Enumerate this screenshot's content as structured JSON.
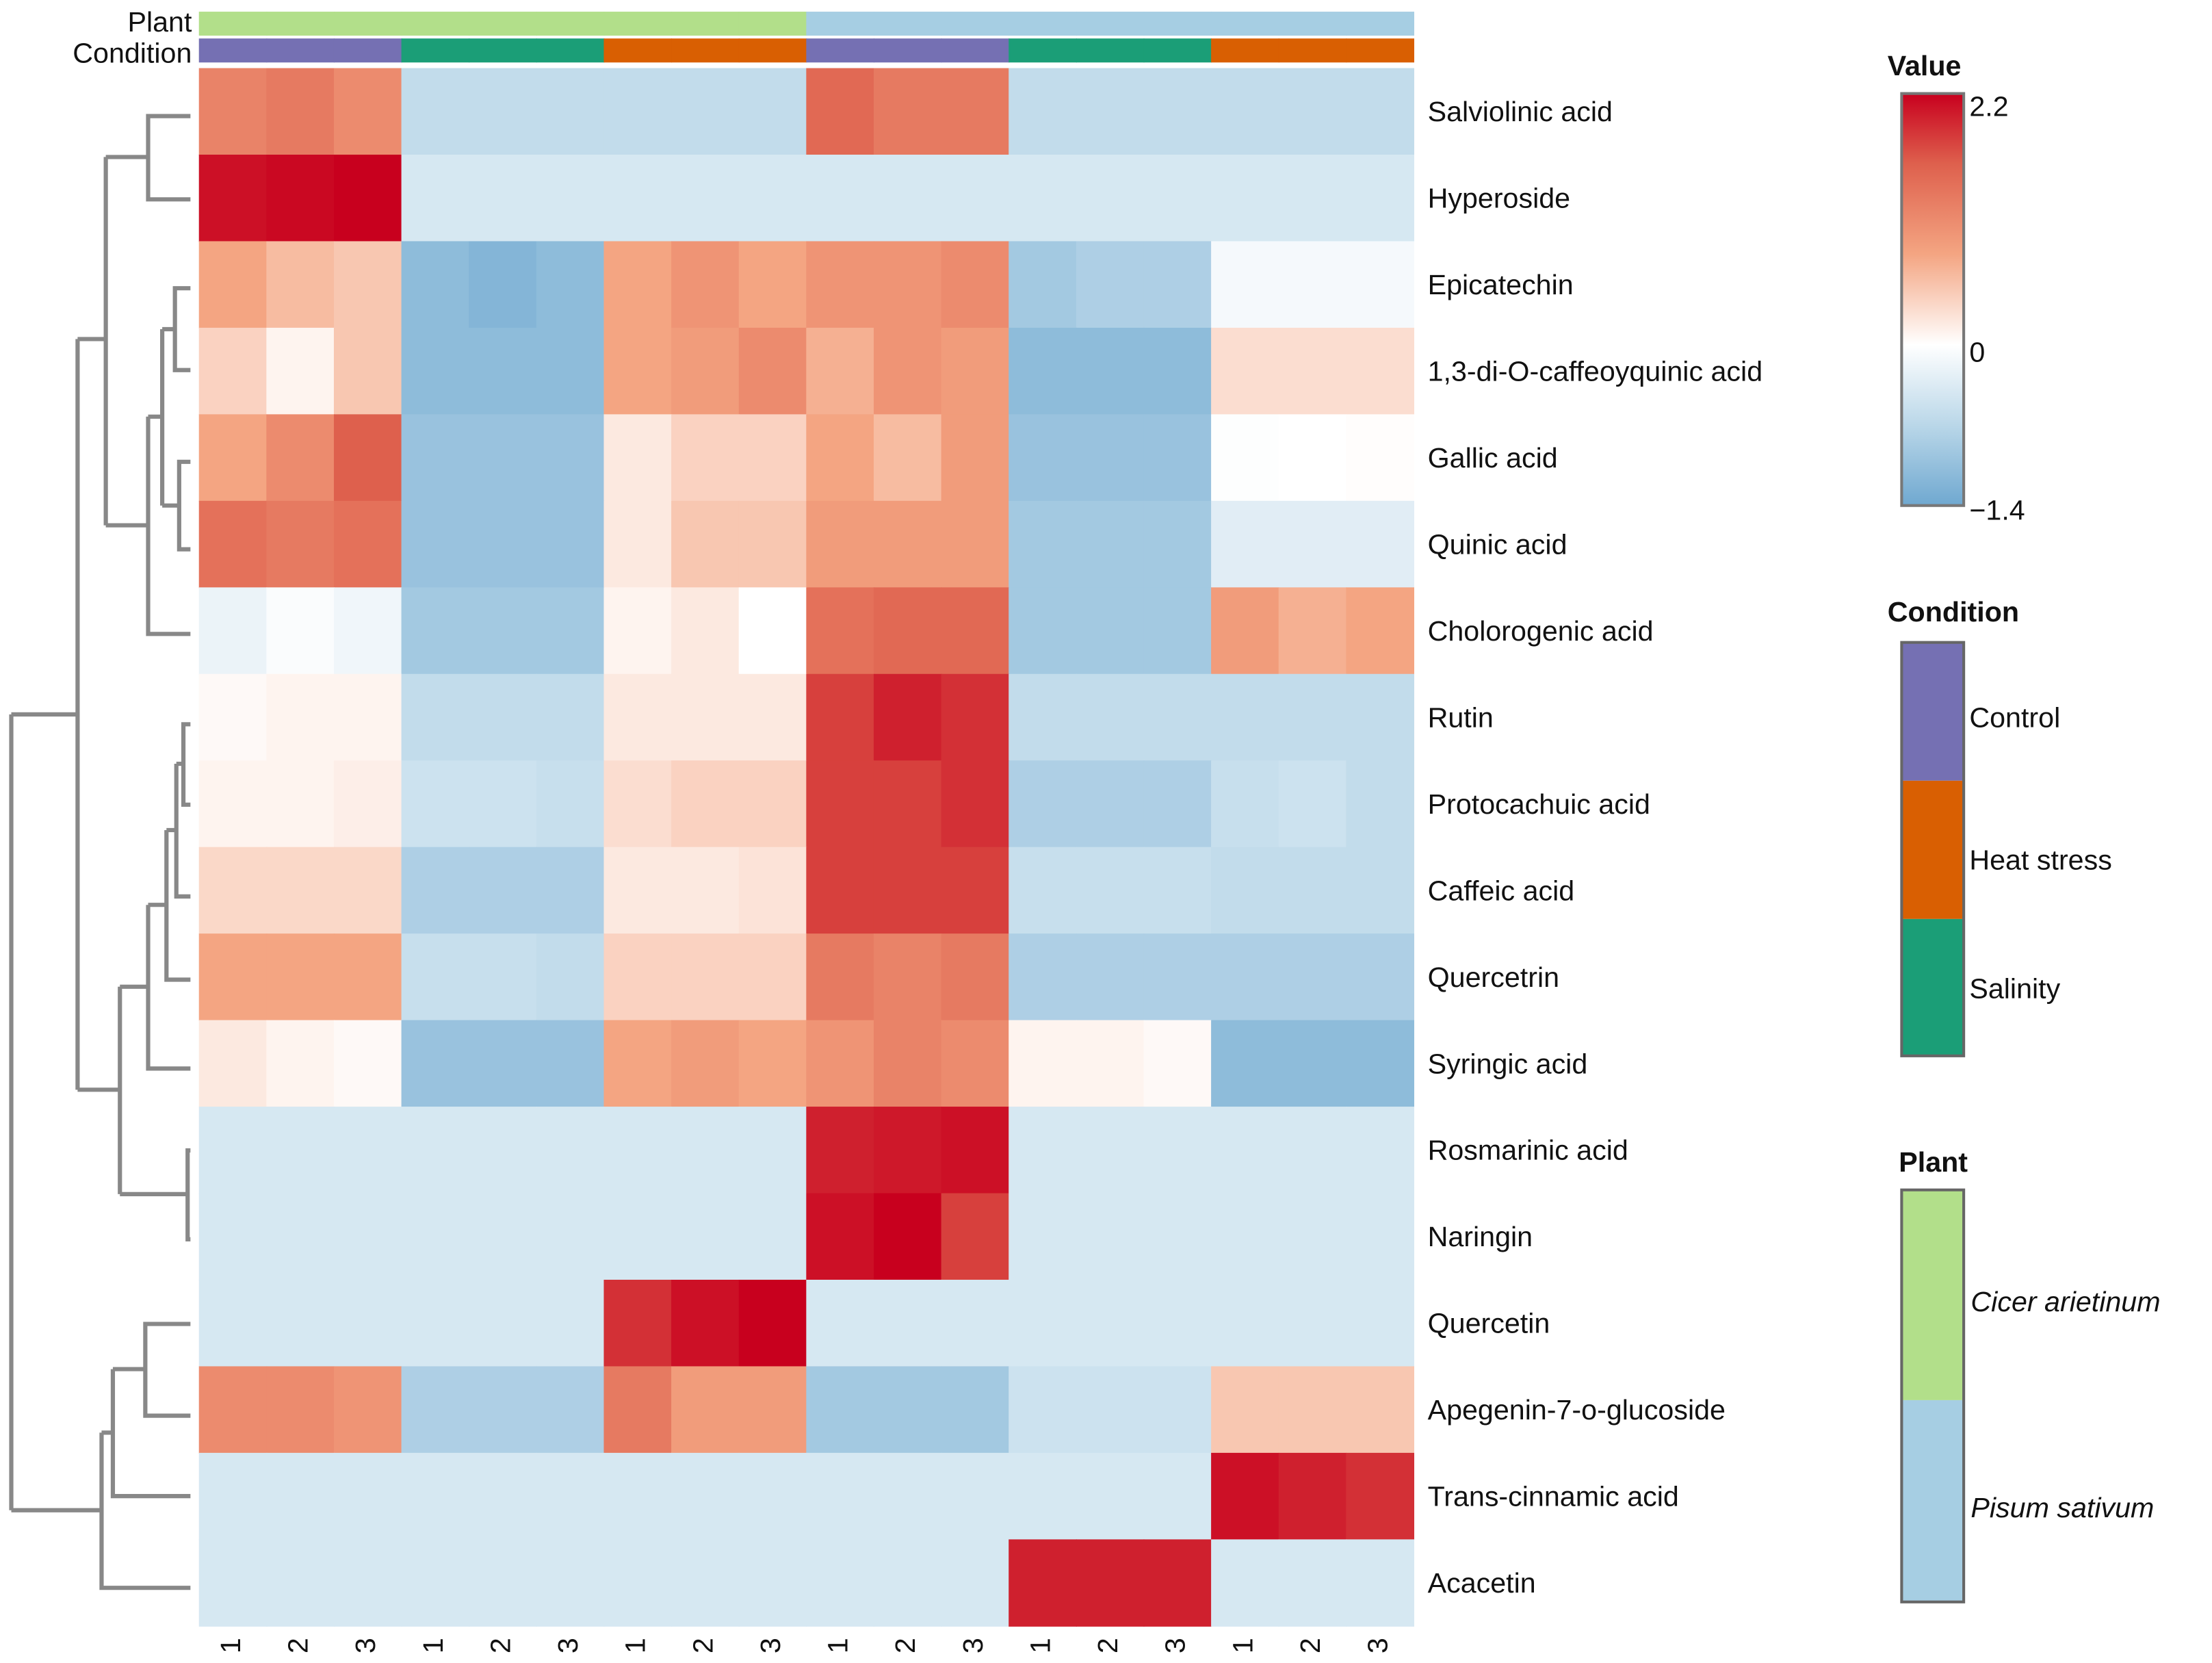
{
  "chart_data": {
    "type": "heatmap",
    "title": "",
    "annotation_labels": {
      "plant": "Plant",
      "condition": "Condition"
    },
    "columns": [
      {
        "label": "1",
        "plant": "Cicer arietinum",
        "condition": "Control"
      },
      {
        "label": "2",
        "plant": "Cicer arietinum",
        "condition": "Control"
      },
      {
        "label": "3",
        "plant": "Cicer arietinum",
        "condition": "Control"
      },
      {
        "label": "1",
        "plant": "Cicer arietinum",
        "condition": "Salinity"
      },
      {
        "label": "2",
        "plant": "Cicer arietinum",
        "condition": "Salinity"
      },
      {
        "label": "3",
        "plant": "Cicer arietinum",
        "condition": "Salinity"
      },
      {
        "label": "1",
        "plant": "Cicer arietinum",
        "condition": "Heat stress"
      },
      {
        "label": "2",
        "plant": "Cicer arietinum",
        "condition": "Heat stress"
      },
      {
        "label": "3",
        "plant": "Cicer arietinum",
        "condition": "Heat stress"
      },
      {
        "label": "1",
        "plant": "Pisum sativum",
        "condition": "Control"
      },
      {
        "label": "2",
        "plant": "Pisum sativum",
        "condition": "Control"
      },
      {
        "label": "3",
        "plant": "Pisum sativum",
        "condition": "Control"
      },
      {
        "label": "1",
        "plant": "Pisum sativum",
        "condition": "Salinity"
      },
      {
        "label": "2",
        "plant": "Pisum sativum",
        "condition": "Salinity"
      },
      {
        "label": "3",
        "plant": "Pisum sativum",
        "condition": "Salinity"
      },
      {
        "label": "1",
        "plant": "Pisum sativum",
        "condition": "Heat stress"
      },
      {
        "label": "2",
        "plant": "Pisum sativum",
        "condition": "Heat stress"
      },
      {
        "label": "3",
        "plant": "Pisum sativum",
        "condition": "Heat stress"
      }
    ],
    "rows": [
      {
        "name": "Salviolinic acid",
        "values": [
          1.2,
          1.3,
          1.1,
          -0.6,
          -0.6,
          -0.6,
          -0.6,
          -0.6,
          -0.6,
          1.5,
          1.3,
          1.3,
          -0.6,
          -0.6,
          -0.6,
          -0.6,
          -0.6,
          -0.6
        ]
      },
      {
        "name": "Hyperoside",
        "values": [
          2.1,
          2.15,
          2.2,
          -0.4,
          -0.4,
          -0.4,
          -0.4,
          -0.4,
          -0.4,
          -0.4,
          -0.4,
          -0.4,
          -0.4,
          -0.4,
          -0.4,
          -0.4,
          -0.4,
          -0.4
        ]
      },
      {
        "name": "Epicatechin",
        "values": [
          0.8,
          0.6,
          0.5,
          -1.1,
          -1.2,
          -1.1,
          0.8,
          1.0,
          0.8,
          1.0,
          1.0,
          1.1,
          -0.9,
          -0.8,
          -0.8,
          -0.1,
          -0.1,
          -0.1
        ]
      },
      {
        "name": "1,3-di-O-caffeoyquinic acid",
        "values": [
          0.4,
          0.1,
          0.5,
          -1.1,
          -1.1,
          -1.1,
          0.8,
          0.9,
          1.1,
          0.7,
          1.0,
          0.9,
          -1.1,
          -1.1,
          -1.1,
          0.3,
          0.3,
          0.3
        ]
      },
      {
        "name": "Gallic acid",
        "values": [
          0.8,
          1.1,
          1.6,
          -1.0,
          -1.0,
          -1.0,
          0.2,
          0.4,
          0.4,
          0.8,
          0.6,
          0.9,
          -1.0,
          -1.0,
          -1.0,
          -0.02,
          0,
          0.02
        ]
      },
      {
        "name": "Quinic acid",
        "values": [
          1.4,
          1.3,
          1.4,
          -1.0,
          -1.0,
          -1.0,
          0.2,
          0.5,
          0.5,
          0.9,
          0.9,
          0.9,
          -0.9,
          -0.9,
          -0.9,
          -0.3,
          -0.3,
          -0.3
        ]
      },
      {
        "name": "Cholorogenic acid",
        "values": [
          -0.2,
          -0.05,
          -0.15,
          -0.9,
          -0.9,
          -0.9,
          0.1,
          0.2,
          0,
          1.4,
          1.5,
          1.5,
          -0.9,
          -0.9,
          -0.9,
          0.9,
          0.7,
          0.8
        ]
      },
      {
        "name": "Rutin",
        "values": [
          0.05,
          0.1,
          0.1,
          -0.6,
          -0.6,
          -0.6,
          0.2,
          0.2,
          0.2,
          1.8,
          2.0,
          1.9,
          -0.6,
          -0.6,
          -0.6,
          -0.6,
          -0.6,
          -0.6
        ]
      },
      {
        "name": "Protocachuic acid",
        "values": [
          0.1,
          0.1,
          0.15,
          -0.5,
          -0.5,
          -0.55,
          0.3,
          0.4,
          0.4,
          1.8,
          1.8,
          1.9,
          -0.8,
          -0.8,
          -0.8,
          -0.55,
          -0.5,
          -0.6
        ]
      },
      {
        "name": "Caffeic acid",
        "values": [
          0.35,
          0.35,
          0.35,
          -0.8,
          -0.8,
          -0.8,
          0.2,
          0.2,
          0.25,
          1.8,
          1.8,
          1.8,
          -0.55,
          -0.55,
          -0.55,
          -0.6,
          -0.6,
          -0.6
        ]
      },
      {
        "name": "Quercetrin",
        "values": [
          0.8,
          0.8,
          0.8,
          -0.55,
          -0.55,
          -0.6,
          0.4,
          0.4,
          0.4,
          1.3,
          1.2,
          1.3,
          -0.8,
          -0.8,
          -0.8,
          -0.8,
          -0.8,
          -0.8
        ]
      },
      {
        "name": "Syringic acid",
        "values": [
          0.2,
          0.1,
          0.05,
          -1.0,
          -1.0,
          -1.0,
          0.8,
          0.9,
          0.8,
          1.0,
          1.2,
          1.1,
          0.1,
          0.1,
          0.05,
          -1.1,
          -1.1,
          -1.1
        ]
      },
      {
        "name": "Rosmarinic acid",
        "values": [
          -0.4,
          -0.4,
          -0.4,
          -0.4,
          -0.4,
          -0.4,
          -0.4,
          -0.4,
          -0.4,
          2.0,
          2.05,
          2.1,
          -0.4,
          -0.4,
          -0.4,
          -0.4,
          -0.4,
          -0.4
        ]
      },
      {
        "name": "Naringin",
        "values": [
          -0.4,
          -0.4,
          -0.4,
          -0.4,
          -0.4,
          -0.4,
          -0.4,
          -0.4,
          -0.4,
          2.1,
          2.2,
          1.8,
          -0.4,
          -0.4,
          -0.4,
          -0.4,
          -0.4,
          -0.4
        ]
      },
      {
        "name": "Quercetin",
        "values": [
          -0.4,
          -0.4,
          -0.4,
          -0.4,
          -0.4,
          -0.4,
          1.9,
          2.1,
          2.2,
          -0.4,
          -0.4,
          -0.4,
          -0.4,
          -0.4,
          -0.4,
          -0.4,
          -0.4,
          -0.4
        ]
      },
      {
        "name": "Apegenin-7-o-glucoside",
        "values": [
          1.1,
          1.1,
          1.0,
          -0.8,
          -0.8,
          -0.8,
          1.3,
          0.9,
          0.9,
          -0.9,
          -0.9,
          -0.9,
          -0.5,
          -0.5,
          -0.5,
          0.5,
          0.5,
          0.5
        ]
      },
      {
        "name": "Trans-cinnamic acid",
        "values": [
          -0.4,
          -0.4,
          -0.4,
          -0.4,
          -0.4,
          -0.4,
          -0.4,
          -0.4,
          -0.4,
          -0.4,
          -0.4,
          -0.4,
          -0.4,
          -0.4,
          -0.4,
          2.1,
          2.0,
          1.9
        ]
      },
      {
        "name": "Acacetin",
        "values": [
          -0.4,
          -0.4,
          -0.4,
          -0.4,
          -0.4,
          -0.4,
          -0.4,
          -0.4,
          -0.4,
          -0.4,
          -0.4,
          -0.4,
          2.0,
          2.0,
          2.0,
          -0.4,
          -0.4,
          -0.4
        ]
      }
    ],
    "value_range": [
      -1.4,
      2.2
    ],
    "legend": {
      "value": {
        "title": "Value",
        "max_label": "2.2",
        "mid_label": "0",
        "min_label": "−1.4"
      },
      "condition": {
        "title": "Condition",
        "items": [
          {
            "label": "Control",
            "color": "#7570B3"
          },
          {
            "label": "Heat stress",
            "color": "#D95F02"
          },
          {
            "label": "Salinity",
            "color": "#1B9E77"
          }
        ]
      },
      "plant": {
        "title": "Plant",
        "items": [
          {
            "label": "Cicer arietinum",
            "color": "#B2DF8A"
          },
          {
            "label": "Pisum sativum",
            "color": "#A6CEE3"
          }
        ]
      },
      "placement": "right"
    },
    "colors": {
      "low": "#6FA8D0",
      "mid": "#FFFFFF",
      "high": "#C8001E"
    }
  }
}
